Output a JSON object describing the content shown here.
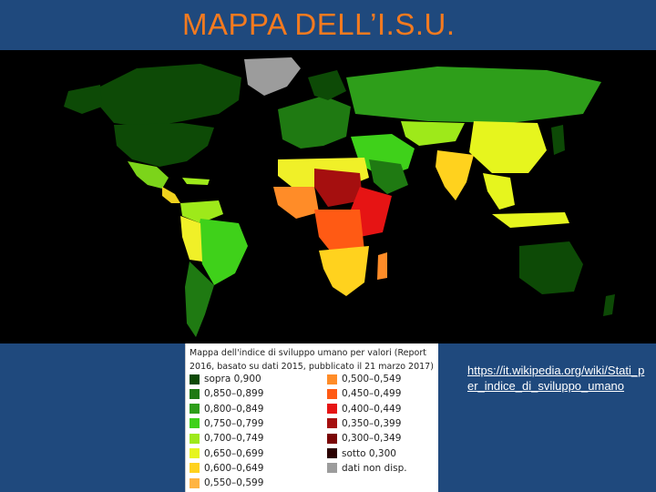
{
  "slide": {
    "title": "MAPPA DELL’I.S.U.",
    "source_link": "https://it.wikipedia.org/wiki/Stati_per_indice_di_sviluppo_umano"
  },
  "map": {
    "background": "#000000",
    "description_colors": {
      "very_high": "#1a5e14",
      "high": "#3fbf1a",
      "medium_high": "#9ee91a",
      "medium": "#f0f028",
      "low": "#f08c28",
      "very_low": "#b4141a",
      "no_data": "#9c9c9c"
    }
  },
  "legend": {
    "title": "Mappa dell'indice di sviluppo umano per valori (Report 2016, basato su dati 2015, pubblicato il 21 marzo 2017)",
    "left_items": [
      {
        "label": "sopra 0,900",
        "color": "#0d4a06"
      },
      {
        "label": "0,850–0,899",
        "color": "#1f7a12"
      },
      {
        "label": "0,800–0,849",
        "color": "#2e9e1a"
      },
      {
        "label": "0,750–0,799",
        "color": "#3fd11a"
      },
      {
        "label": "0,700–0,749",
        "color": "#9ee91a"
      },
      {
        "label": "0,650–0,699",
        "color": "#e6f51e"
      },
      {
        "label": "0,600–0,649",
        "color": "#ffd21e"
      },
      {
        "label": "0,550–0,599",
        "color": "#ffb442"
      }
    ],
    "right_items": [
      {
        "label": "0,500–0,549",
        "color": "#ff8c28"
      },
      {
        "label": "0,450–0,499",
        "color": "#ff5a14"
      },
      {
        "label": "0,400–0,449",
        "color": "#e61414"
      },
      {
        "label": "0,350–0,399",
        "color": "#a50f0f"
      },
      {
        "label": "0,300–0,349",
        "color": "#7a0505"
      },
      {
        "label": "sotto 0,300",
        "color": "#2a0000"
      },
      {
        "label": "dati non disp.",
        "color": "#9c9c9c"
      }
    ]
  }
}
